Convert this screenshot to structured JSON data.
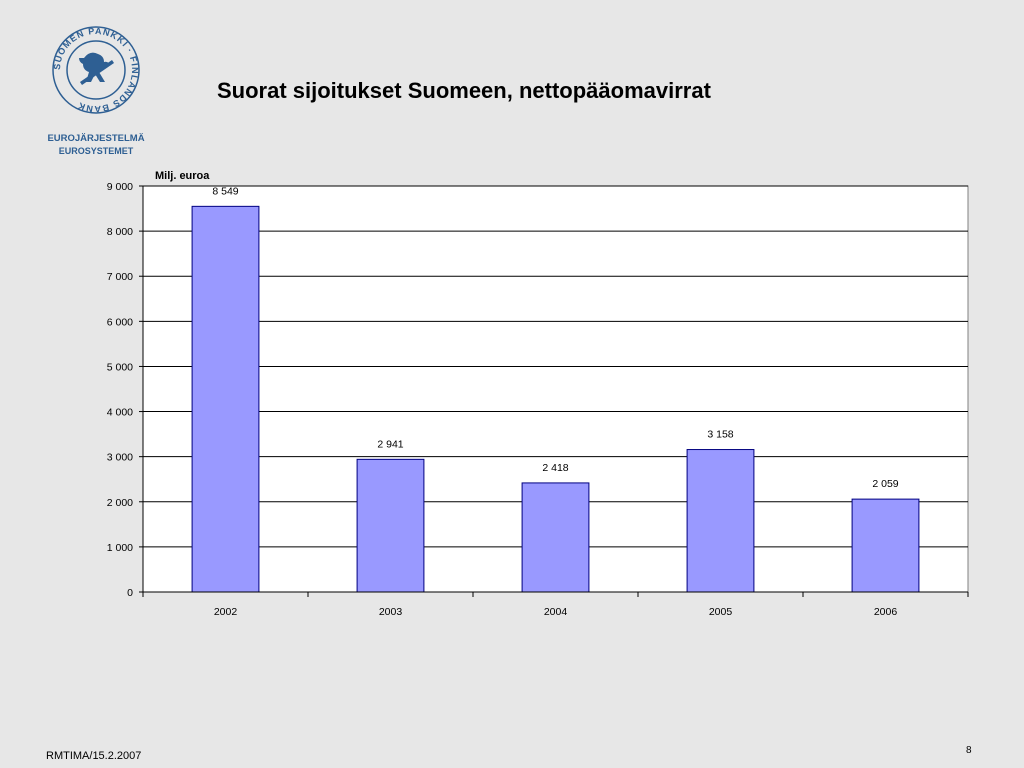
{
  "logo": {
    "ring_text": "SUOMEN PANKKI · FINLANDS BANK",
    "line1": "EUROJÄRJESTELMÄ",
    "line2": "EUROSYSTEMET",
    "color": "#2e5f93"
  },
  "slide": {
    "title": "Suorat sijoitukset Suomeen, nettopääomavirrat",
    "footer": "RMTIMA/15.2.2007",
    "page_number": "8"
  },
  "chart_data": {
    "type": "bar",
    "title": "Suorat sijoitukset Suomeen, nettopääomavirrat",
    "ylabel": "Milj. euroa",
    "xlabel": "",
    "categories": [
      "2002",
      "2003",
      "2004",
      "2005",
      "2006"
    ],
    "values": [
      8549,
      2941,
      2418,
      3158,
      2059
    ],
    "value_labels": [
      "8 549",
      "2 941",
      "2 418",
      "3 158",
      "2 059"
    ],
    "ylim": [
      0,
      9000
    ],
    "yticks": [
      0,
      1000,
      2000,
      3000,
      4000,
      5000,
      6000,
      7000,
      8000,
      9000
    ],
    "ytick_labels": [
      "0",
      "1 000",
      "2 000",
      "3 000",
      "4 000",
      "5 000",
      "6 000",
      "7 000",
      "8 000",
      "9 000"
    ],
    "grid": true,
    "legend": false,
    "bar_color": "#9999ff",
    "bar_edge_color": "#000080"
  }
}
